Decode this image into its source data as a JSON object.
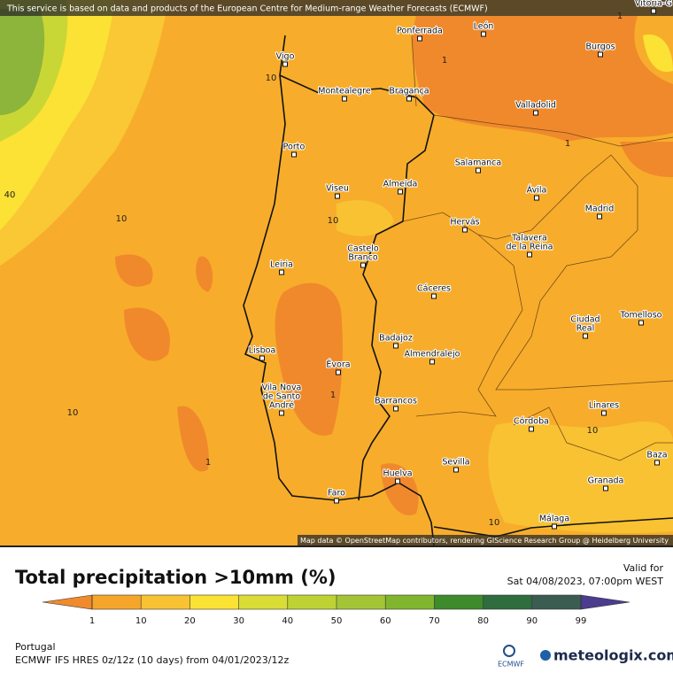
{
  "header": {
    "notice": "This service is based on data and products of the European Centre for Medium-range Weather Forecasts (ECMWF)",
    "attribution": "Map data © OpenStreetMap contributors, rendering GIScience Research Group @ Heidelberg University"
  },
  "cities": [
    {
      "lines": [
        "Vitoria-G"
      ]
    },
    {
      "lines": [
        "Ponferrada"
      ]
    },
    {
      "lines": [
        "León"
      ]
    },
    {
      "lines": [
        "Vigo"
      ]
    },
    {
      "lines": [
        "Burgos"
      ]
    },
    {
      "lines": [
        "Montealegre"
      ]
    },
    {
      "lines": [
        "Bragança"
      ]
    },
    {
      "lines": [
        "Valladolid"
      ]
    },
    {
      "lines": [
        "Porto"
      ]
    },
    {
      "lines": [
        "Salamanca"
      ]
    },
    {
      "lines": [
        "Viseu"
      ]
    },
    {
      "lines": [
        "Almeida"
      ]
    },
    {
      "lines": [
        "Ávila"
      ]
    },
    {
      "lines": [
        "Madrid"
      ]
    },
    {
      "lines": [
        "Hervás"
      ]
    },
    {
      "lines": [
        "Talavera",
        "de la Reina"
      ]
    },
    {
      "lines": [
        "Castelo",
        "Branco"
      ]
    },
    {
      "lines": [
        "Leiria"
      ]
    },
    {
      "lines": [
        "Cáceres"
      ]
    },
    {
      "lines": [
        "Ciudad",
        "Real"
      ]
    },
    {
      "lines": [
        "Tomelloso"
      ]
    },
    {
      "lines": [
        "Lisboa"
      ]
    },
    {
      "lines": [
        "Badajoz"
      ]
    },
    {
      "lines": [
        "Almendralejo"
      ]
    },
    {
      "lines": [
        "Évora"
      ]
    },
    {
      "lines": [
        "Vila Nova",
        "de Santo",
        "André"
      ]
    },
    {
      "lines": [
        "Barrancos"
      ]
    },
    {
      "lines": [
        "Linares"
      ]
    },
    {
      "lines": [
        "Córdoba"
      ]
    },
    {
      "lines": [
        "Baza"
      ]
    },
    {
      "lines": [
        "Sevilla"
      ]
    },
    {
      "lines": [
        "Granada"
      ]
    },
    {
      "lines": [
        "Huelva"
      ]
    },
    {
      "lines": [
        "Faro"
      ]
    },
    {
      "lines": [
        "Málaga"
      ]
    }
  ],
  "contour_labels": [
    1,
    10,
    1,
    1,
    40,
    10,
    10,
    10,
    1,
    1,
    10,
    10
  ],
  "title": "Total precipitation >10mm (%)",
  "valid_label": "Valid for",
  "valid_time": "Sat 04/08/2023, 07:00pm WEST",
  "legend": {
    "ticks": [
      1,
      10,
      20,
      30,
      40,
      50,
      60,
      70,
      80,
      90,
      99
    ],
    "colors": [
      "#f08a2c",
      "#f6a52b",
      "#f9c232",
      "#fbe333",
      "#d9dd36",
      "#bfd234",
      "#a3c535",
      "#80b52e",
      "#3d8b2a",
      "#2f6c3e",
      "#3b5c50",
      "#4b3c8e"
    ]
  },
  "footer": {
    "region": "Portugal",
    "model": "ECMWF IFS HRES 0z/12z (10 days) from 04/01/2023/12z",
    "ecmwf": "ECMWF",
    "brand": "meteologix.com"
  }
}
